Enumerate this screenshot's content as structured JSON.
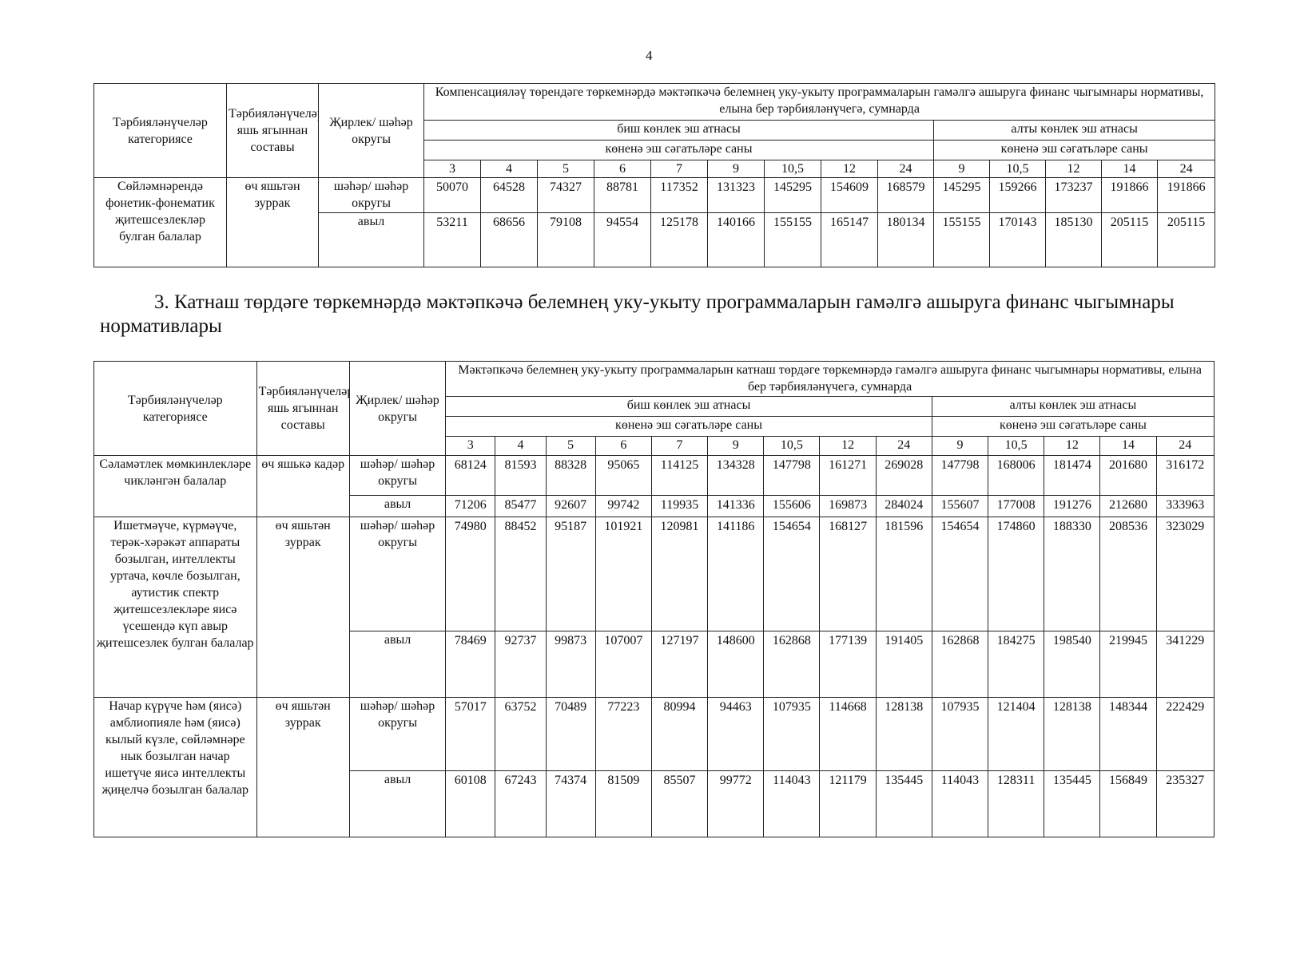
{
  "page_number": "4",
  "table1": {
    "header": {
      "category": "Тәрбияләнүчеләр категориясе",
      "age": "Тәрбияләнүчеләрнең яшь ягыннан составы",
      "location": "Җирлек/ шәһәр округы",
      "title": "Компенсацияләү төрендәге төркемнәрдә мәктәпкәчә белемнең уку-укыту программаларын гамәлгә ашыруга финанс чыгымнары нормативы, елына бер тәрбияләнүчегә, сумнарда",
      "five_day": "биш көнлек эш атнасы",
      "six_day": "алты көнлек эш атнасы",
      "hours_label": "көненә эш сәгатьләре саны",
      "hours5": [
        "3",
        "4",
        "5",
        "6",
        "7",
        "9",
        "10,5",
        "12",
        "24"
      ],
      "hours6": [
        "9",
        "10,5",
        "12",
        "14",
        "24"
      ]
    },
    "groups": [
      {
        "category": "Сөйләмнәрендә фонетик-фонематик җитешсезлекләр булган балалар",
        "age": "өч яшьтән зуррак",
        "rows": [
          {
            "location": "шәһәр/ шәһәр округы",
            "values": [
              "50070",
              "64528",
              "74327",
              "88781",
              "117352",
              "131323",
              "145295",
              "154609",
              "168579",
              "145295",
              "159266",
              "173237",
              "191866",
              "191866"
            ]
          },
          {
            "location": "авыл",
            "values": [
              "53211",
              "68656",
              "79108",
              "94554",
              "125178",
              "140166",
              "155155",
              "165147",
              "180134",
              "155155",
              "170143",
              "185130",
              "205115",
              "205115"
            ]
          }
        ]
      }
    ]
  },
  "section_heading": "3. Катнаш төрдәге төркемнәрдә мәктәпкәчә белемнең уку-укыту программаларын гамәлгә ашыруга финанс чыгымнары нормативлары",
  "table2": {
    "header": {
      "category": "Тәрбияләнүчеләр категориясе",
      "age": "Тәрбияләнүчеләрнең яшь ягыннан составы",
      "location": "Җирлек/ шәһәр округы",
      "title": "Мәктәпкәчә белемнең уку-укыту программаларын катнаш төрдәге төркемнәрдә гамәлгә ашыруга финанс чыгымнары нормативы, елына бер тәрбияләнүчегә, сумнарда",
      "five_day": "биш көнлек эш атнасы",
      "six_day": "алты көнлек эш атнасы",
      "hours_label": "көненә эш сәгатьләре саны",
      "hours5": [
        "3",
        "4",
        "5",
        "6",
        "7",
        "9",
        "10,5",
        "12",
        "24"
      ],
      "hours6": [
        "9",
        "10,5",
        "12",
        "14",
        "24"
      ]
    },
    "groups": [
      {
        "category": "Сәламәтлек мөмкинлекләре чикләнгән балалар",
        "age": "өч яшькә кадәр",
        "rows": [
          {
            "location": "шәһәр/ шәһәр округы",
            "values": [
              "68124",
              "81593",
              "88328",
              "95065",
              "114125",
              "134328",
              "147798",
              "161271",
              "269028",
              "147798",
              "168006",
              "181474",
              "201680",
              "316172"
            ]
          },
          {
            "location": "авыл",
            "values": [
              "71206",
              "85477",
              "92607",
              "99742",
              "119935",
              "141336",
              "155606",
              "169873",
              "284024",
              "155607",
              "177008",
              "191276",
              "212680",
              "333963"
            ]
          }
        ]
      },
      {
        "category": "Ишетмәүче, күрмәүче, терәк-хәрәкәт аппараты бозылган, интеллекты уртача, көчле бозылган, аутистик спектр җитешсезлекләре яисә үсешендә күп авыр җитешсезлек булган балалар",
        "age": "өч яшьтән зуррак",
        "rows": [
          {
            "location": "шәһәр/ шәһәр округы",
            "values": [
              "74980",
              "88452",
              "95187",
              "101921",
              "120981",
              "141186",
              "154654",
              "168127",
              "181596",
              "154654",
              "174860",
              "188330",
              "208536",
              "323029"
            ]
          },
          {
            "location": "авыл",
            "values": [
              "78469",
              "92737",
              "99873",
              "107007",
              "127197",
              "148600",
              "162868",
              "177139",
              "191405",
              "162868",
              "184275",
              "198540",
              "219945",
              "341229"
            ]
          }
        ]
      },
      {
        "category": "Начар күрүче һәм (яисә) амблиопияле һәм (яисә) кылый күзле, сөйләмнәре нык бозылган начар ишетүче яисә интеллекты җиңелчә бозылган балалар",
        "age": "өч яшьтән зуррак",
        "rows": [
          {
            "location": "шәһәр/ шәһәр округы",
            "values": [
              "57017",
              "63752",
              "70489",
              "77223",
              "80994",
              "94463",
              "107935",
              "114668",
              "128138",
              "107935",
              "121404",
              "128138",
              "148344",
              "222429"
            ]
          },
          {
            "location": "авыл",
            "values": [
              "60108",
              "67243",
              "74374",
              "81509",
              "85507",
              "99772",
              "114043",
              "121179",
              "135445",
              "114043",
              "128311",
              "135445",
              "156849",
              "235327"
            ]
          }
        ]
      }
    ]
  }
}
